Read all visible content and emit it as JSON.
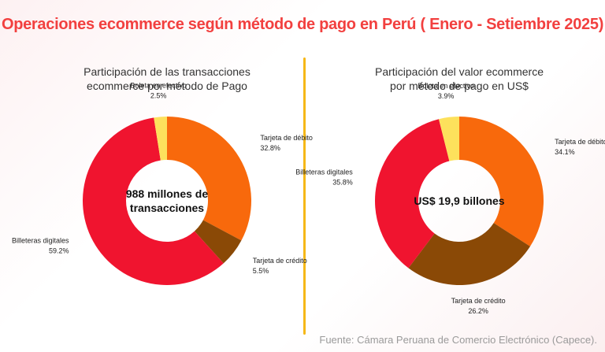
{
  "title": "Operaciones ecommerce según método de pago en Perú ( Enero - Setiembre 2025)",
  "source": "Fuente: Cámara Peruana de Comercio Electrónico (Capece).",
  "chart_data": [
    {
      "type": "donut",
      "title": "Participación de las transacciones ecommerce por método de Pago",
      "center_label": "988 millones de transacciones",
      "categories": [
        "Tarjeta de débito",
        "Tarjeta de crédito",
        "Billeteras digitales",
        "Boleta en efectivo"
      ],
      "values": [
        32.8,
        5.5,
        59.2,
        2.5
      ],
      "value_labels": [
        "32.8%",
        "5.5%",
        "59.2%",
        "2.5%"
      ],
      "colors": [
        "#f8690c",
        "#8a4906",
        "#f0142f",
        "#fde15c"
      ]
    },
    {
      "type": "donut",
      "title": "Participación del valor ecommerce por método de pago en US$",
      "center_label": "US$ 19,9 billones",
      "categories": [
        "Tarjeta de débito",
        "Tarjeta de crédito",
        "Billeteras digitales",
        "Boleta en efectivo"
      ],
      "values": [
        34.1,
        26.2,
        35.8,
        3.9
      ],
      "value_labels": [
        "34.1%",
        "26.2%",
        "35.8%",
        "3.9%"
      ],
      "colors": [
        "#f8690c",
        "#8a4906",
        "#f0142f",
        "#fde15c"
      ]
    }
  ]
}
